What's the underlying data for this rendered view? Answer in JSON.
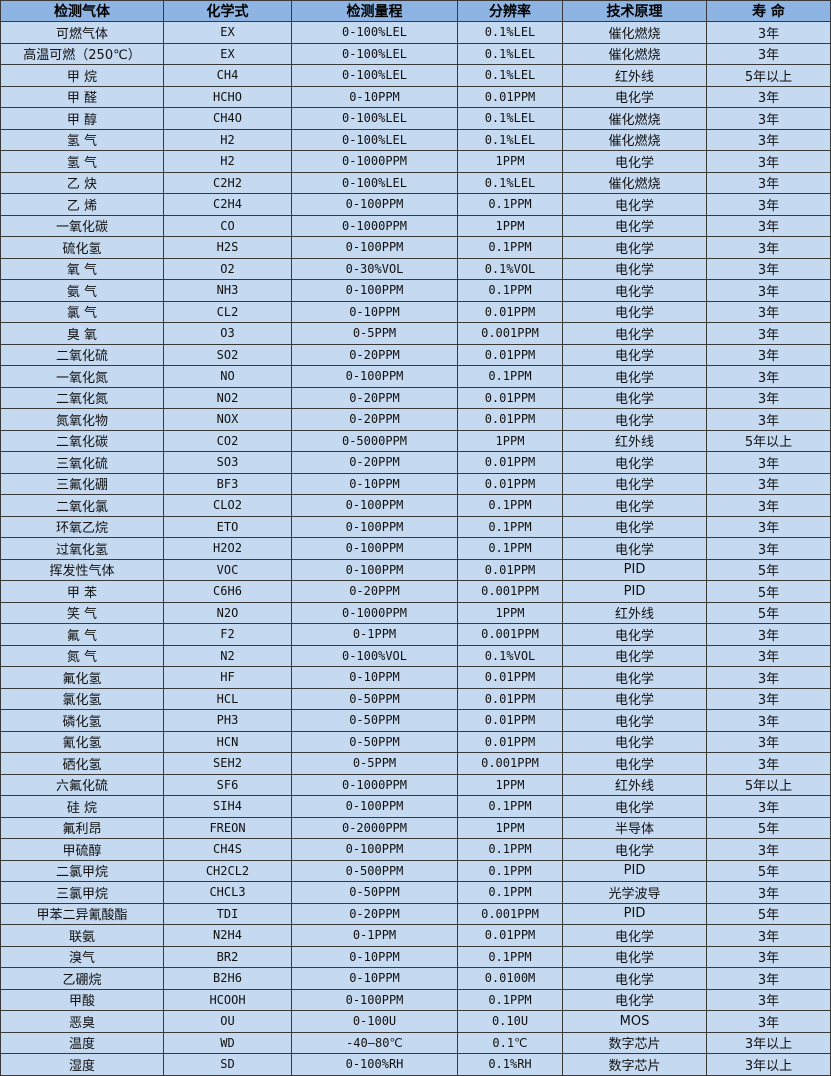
{
  "table": {
    "headers": [
      "检测气体",
      "化学式",
      "检测量程",
      "分辨率",
      "技术原理",
      "寿 命"
    ],
    "rows": [
      [
        "可燃气体",
        "EX",
        "0-100%LEL",
        "0.1%LEL",
        "催化燃烧",
        "3年"
      ],
      [
        "高温可燃（250℃）",
        "EX",
        "0-100%LEL",
        "0.1%LEL",
        "催化燃烧",
        "3年"
      ],
      [
        "甲 烷",
        "CH4",
        "0-100%LEL",
        "0.1%LEL",
        "红外线",
        "5年以上"
      ],
      [
        "甲 醛",
        "HCHO",
        "0-10PPM",
        "0.01PPM",
        "电化学",
        "3年"
      ],
      [
        "甲 醇",
        "CH4O",
        "0-100%LEL",
        "0.1%LEL",
        "催化燃烧",
        "3年"
      ],
      [
        "氢 气",
        "H2",
        "0-100%LEL",
        "0.1%LEL",
        "催化燃烧",
        "3年"
      ],
      [
        "氢 气",
        "H2",
        "0-1000PPM",
        "1PPM",
        "电化学",
        "3年"
      ],
      [
        "乙 炔",
        "C2H2",
        "0-100%LEL",
        "0.1%LEL",
        "催化燃烧",
        "3年"
      ],
      [
        "乙 烯",
        "C2H4",
        "0-100PPM",
        "0.1PPM",
        "电化学",
        "3年"
      ],
      [
        "一氧化碳",
        "CO",
        "0-1000PPM",
        "1PPM",
        "电化学",
        "3年"
      ],
      [
        "硫化氢",
        "H2S",
        "0-100PPM",
        "0.1PPM",
        "电化学",
        "3年"
      ],
      [
        "氧 气",
        "O2",
        "0-30%VOL",
        "0.1%VOL",
        "电化学",
        "3年"
      ],
      [
        "氨 气",
        "NH3",
        "0-100PPM",
        "0.1PPM",
        "电化学",
        "3年"
      ],
      [
        "氯 气",
        "CL2",
        "0-10PPM",
        "0.01PPM",
        "电化学",
        "3年"
      ],
      [
        "臭 氧",
        "O3",
        "0-5PPM",
        "0.001PPM",
        "电化学",
        "3年"
      ],
      [
        "二氧化硫",
        "SO2",
        "0-20PPM",
        "0.01PPM",
        "电化学",
        "3年"
      ],
      [
        "一氧化氮",
        "NO",
        "0-100PPM",
        "0.1PPM",
        "电化学",
        "3年"
      ],
      [
        "二氧化氮",
        "NO2",
        "0-20PPM",
        "0.01PPM",
        "电化学",
        "3年"
      ],
      [
        "氮氧化物",
        "NOX",
        "0-20PPM",
        "0.01PPM",
        "电化学",
        "3年"
      ],
      [
        "二氧化碳",
        "CO2",
        "0-5000PPM",
        "1PPM",
        "红外线",
        "5年以上"
      ],
      [
        "三氧化硫",
        "SO3",
        "0-20PPM",
        "0.01PPM",
        "电化学",
        "3年"
      ],
      [
        "三氟化硼",
        "BF3",
        "0-10PPM",
        "0.01PPM",
        "电化学",
        "3年"
      ],
      [
        "二氧化氯",
        "CLO2",
        "0-100PPM",
        "0.1PPM",
        "电化学",
        "3年"
      ],
      [
        "环氧乙烷",
        "ETO",
        "0-100PPM",
        "0.1PPM",
        "电化学",
        "3年"
      ],
      [
        "过氧化氢",
        "H2O2",
        "0-100PPM",
        "0.1PPM",
        "电化学",
        "3年"
      ],
      [
        "挥发性气体",
        "VOC",
        "0-100PPM",
        "0.01PPM",
        "PID",
        "5年"
      ],
      [
        "甲 苯",
        "C6H6",
        "0-20PPM",
        "0.001PPM",
        "PID",
        "5年"
      ],
      [
        "笑 气",
        "N2O",
        "0-1000PPM",
        "1PPM",
        "红外线",
        "5年"
      ],
      [
        "氟 气",
        "F2",
        "0-1PPM",
        "0.001PPM",
        "电化学",
        "3年"
      ],
      [
        "氮 气",
        "N2",
        "0-100%VOL",
        "0.1%VOL",
        "电化学",
        "3年"
      ],
      [
        "氟化氢",
        "HF",
        "0-10PPM",
        "0.01PPM",
        "电化学",
        "3年"
      ],
      [
        "氯化氢",
        "HCL",
        "0-50PPM",
        "0.01PPM",
        "电化学",
        "3年"
      ],
      [
        "磷化氢",
        "PH3",
        "0-50PPM",
        "0.01PPM",
        "电化学",
        "3年"
      ],
      [
        "氰化氢",
        "HCN",
        "0-50PPM",
        "0.01PPM",
        "电化学",
        "3年"
      ],
      [
        "硒化氢",
        "SEH2",
        "0-5PPM",
        "0.001PPM",
        "电化学",
        "3年"
      ],
      [
        "六氟化硫",
        "SF6",
        "0-1000PPM",
        "1PPM",
        "红外线",
        "5年以上"
      ],
      [
        "硅 烷",
        "SIH4",
        "0-100PPM",
        "0.1PPM",
        "电化学",
        "3年"
      ],
      [
        "氟利昂",
        "FREON",
        "0-2000PPM",
        "1PPM",
        "半导体",
        "5年"
      ],
      [
        "甲硫醇",
        "CH4S",
        "0-100PPM",
        "0.1PPM",
        "电化学",
        "3年"
      ],
      [
        "二氯甲烷",
        "CH2CL2",
        "0-500PPM",
        "0.1PPM",
        "PID",
        "5年"
      ],
      [
        "三氯甲烷",
        "CHCL3",
        "0-50PPM",
        "0.1PPM",
        "光学波导",
        "3年"
      ],
      [
        "甲苯二异氰酸酯",
        "TDI",
        "0-20PPM",
        "0.001PPM",
        "PID",
        "5年"
      ],
      [
        "联氨",
        "N2H4",
        "0-1PPM",
        "0.01PPM",
        "电化学",
        "3年"
      ],
      [
        "溴气",
        "BR2",
        "0-10PPM",
        "0.1PPM",
        "电化学",
        "3年"
      ],
      [
        "乙硼烷",
        "B2H6",
        "0-10PPM",
        "0.0100M",
        "电化学",
        "3年"
      ],
      [
        "甲酸",
        "HCOOH",
        "0-100PPM",
        "0.1PPM",
        "电化学",
        "3年"
      ],
      [
        "恶臭",
        "OU",
        "0-100U",
        "0.10U",
        "MOS",
        "3年"
      ],
      [
        "温度",
        "WD",
        "-40—80℃",
        "0.1℃",
        "数字芯片",
        "3年以上"
      ],
      [
        "湿度",
        "SD",
        "0-100%RH",
        "0.1%RH",
        "数字芯片",
        "3年以上"
      ]
    ]
  },
  "colors": {
    "header_bg": "#8db4e2",
    "row_bg": "#c5d9f1",
    "border": "#3a3a3a"
  }
}
